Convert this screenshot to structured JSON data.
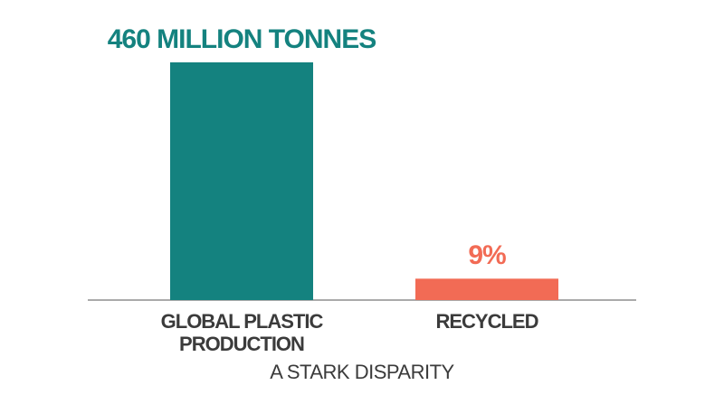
{
  "chart_data": {
    "type": "bar",
    "title": "A STARK DISPARITY",
    "categories": [
      "GLOBAL PLASTIC PRODUCTION",
      "RECYCLED"
    ],
    "values": [
      460,
      41.4
    ],
    "value_labels": [
      "460 MILLION TONNES",
      "9%"
    ],
    "colors": [
      "#14827f",
      "#f26b55"
    ]
  }
}
